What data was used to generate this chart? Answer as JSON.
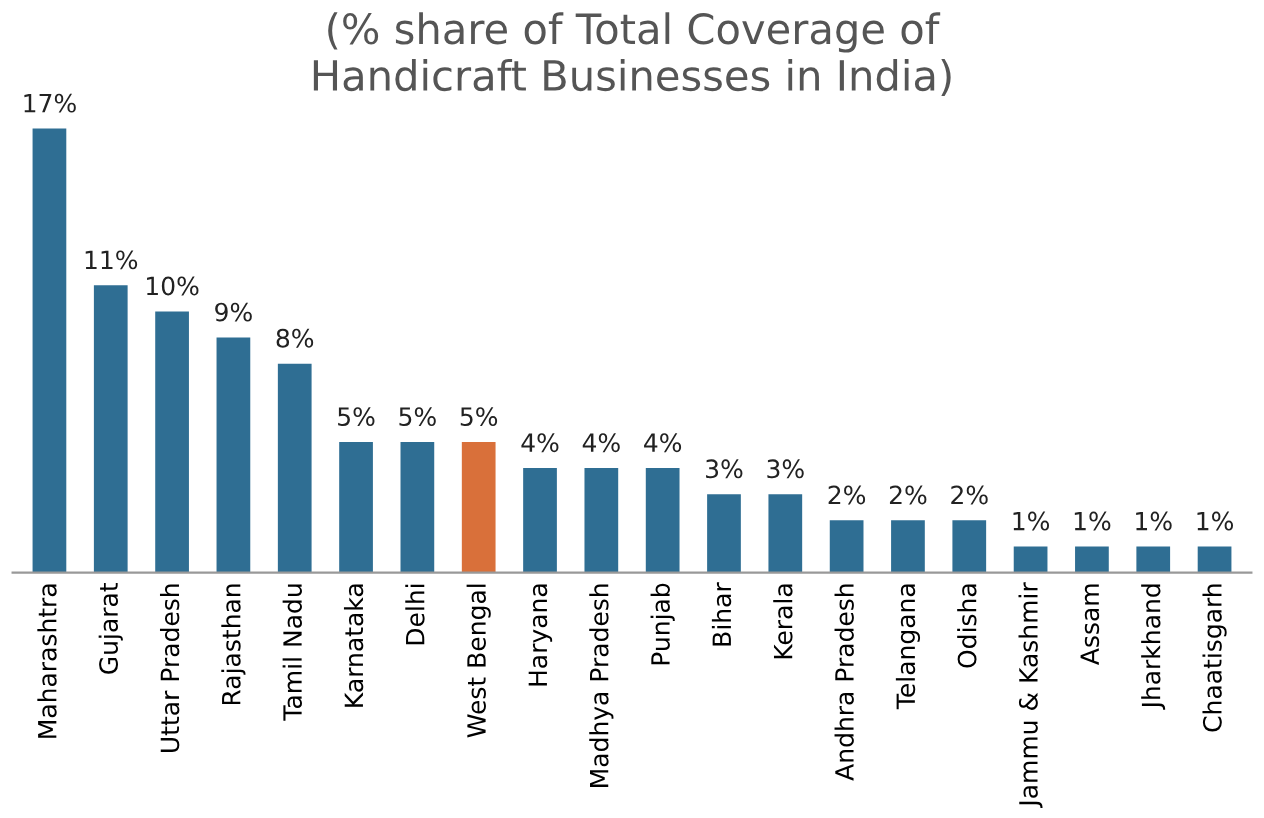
{
  "chart_data": {
    "type": "bar",
    "title": "(% share of Total Coverage of\nHandicraft Businesses in India)",
    "categories": [
      "Maharashtra",
      "Gujarat",
      "Uttar Pradesh",
      "Rajasthan",
      "Tamil Nadu",
      "Karnataka",
      "Delhi",
      "West Bengal",
      "Haryana",
      "Madhya Pradesh",
      "Punjab",
      "Bihar",
      "Kerala",
      "Andhra Pradesh",
      "Telangana",
      "Odisha",
      "Jammu & Kashmir",
      "Assam",
      "Jharkhand",
      "Chaatisgarh"
    ],
    "values": [
      17,
      11,
      10,
      9,
      8,
      5,
      5,
      5,
      4,
      4,
      4,
      3,
      3,
      2,
      2,
      2,
      1,
      1,
      1,
      1
    ],
    "value_labels": [
      "17%",
      "11%",
      "10%",
      "9%",
      "8%",
      "5%",
      "5%",
      "5%",
      "4%",
      "4%",
      "4%",
      "3%",
      "3%",
      "2%",
      "2%",
      "2%",
      "1%",
      "1%",
      "1%",
      "1%"
    ],
    "colors": [
      "#2f6e93",
      "#2f6e93",
      "#2f6e93",
      "#2f6e93",
      "#2f6e93",
      "#2f6e93",
      "#2f6e93",
      "#d9703a",
      "#2f6e93",
      "#2f6e93",
      "#2f6e93",
      "#2f6e93",
      "#2f6e93",
      "#2f6e93",
      "#2f6e93",
      "#2f6e93",
      "#2f6e93",
      "#2f6e93",
      "#2f6e93",
      "#2f6e93"
    ],
    "grid": false,
    "legend": false
  }
}
